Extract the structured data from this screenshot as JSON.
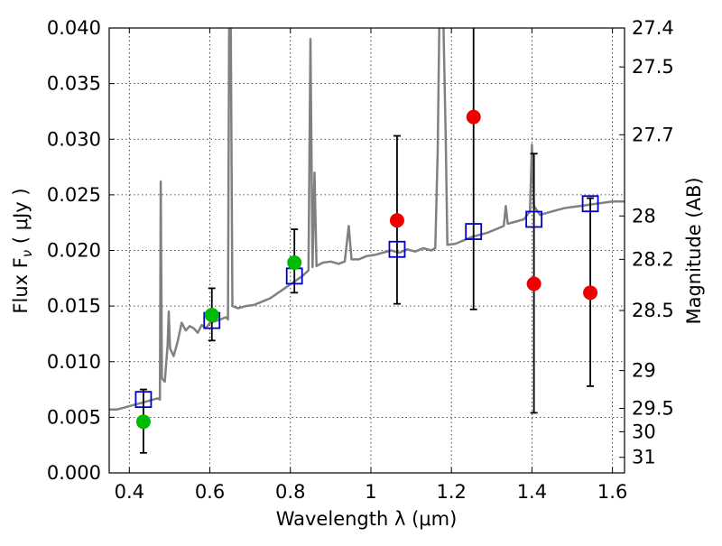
{
  "chart_data": {
    "type": "scatter",
    "xlabel": "Wavelength  λ (μm)",
    "ylabel": "Flux  F",
    "ylabel_sub": "ν",
    "ylabel_unit": "  ( μJy )",
    "y2label": "Magnitude (AB)",
    "xlim": [
      0.35,
      1.63
    ],
    "ylim": [
      0.0,
      0.04
    ],
    "grid": true,
    "x_ticks": [
      0.4,
      0.6,
      0.8,
      1.0,
      1.2,
      1.4,
      1.6
    ],
    "x_tick_labels": [
      "0.4",
      "0.6",
      "0.8",
      "1",
      "1.2",
      "1.4",
      "1.6"
    ],
    "y_ticks": [
      0.0,
      0.005,
      0.01,
      0.015,
      0.02,
      0.025,
      0.03,
      0.035,
      0.04
    ],
    "y_tick_labels": [
      "0.000",
      "0.005",
      "0.010",
      "0.015",
      "0.020",
      "0.025",
      "0.030",
      "0.035",
      "0.040"
    ],
    "y2_ticks": [
      {
        "label": "27.4",
        "flux": 0.04
      },
      {
        "label": "27.5",
        "flux": 0.0365
      },
      {
        "label": "27.7",
        "flux": 0.0304
      },
      {
        "label": "28",
        "flux": 0.0231
      },
      {
        "label": "28.2",
        "flux": 0.0192
      },
      {
        "label": "28.5",
        "flux": 0.0146
      },
      {
        "label": "29",
        "flux": 0.0092
      },
      {
        "label": "29.5",
        "flux": 0.0058
      },
      {
        "label": "30",
        "flux": 0.0037
      },
      {
        "label": "31",
        "flux": 0.0014
      }
    ],
    "series": [
      {
        "kind": "spectrum",
        "color": "#808080",
        "points": [
          [
            0.35,
            0.0057
          ],
          [
            0.37,
            0.0057
          ],
          [
            0.39,
            0.0059
          ],
          [
            0.41,
            0.0061
          ],
          [
            0.43,
            0.0063
          ],
          [
            0.45,
            0.0065
          ],
          [
            0.47,
            0.0067
          ],
          [
            0.476,
            0.0066
          ],
          [
            0.478,
            0.0262
          ],
          [
            0.481,
            0.0085
          ],
          [
            0.488,
            0.0082
          ],
          [
            0.495,
            0.0115
          ],
          [
            0.498,
            0.0145
          ],
          [
            0.501,
            0.0112
          ],
          [
            0.51,
            0.0105
          ],
          [
            0.52,
            0.0118
          ],
          [
            0.53,
            0.0135
          ],
          [
            0.54,
            0.0128
          ],
          [
            0.55,
            0.0132
          ],
          [
            0.56,
            0.013
          ],
          [
            0.57,
            0.0126
          ],
          [
            0.58,
            0.0133
          ],
          [
            0.59,
            0.013
          ],
          [
            0.6,
            0.0135
          ],
          [
            0.62,
            0.0137
          ],
          [
            0.64,
            0.014
          ],
          [
            0.645,
            0.0138
          ],
          [
            0.648,
            0.0405
          ],
          [
            0.652,
            0.0405
          ],
          [
            0.656,
            0.015
          ],
          [
            0.67,
            0.0148
          ],
          [
            0.69,
            0.015
          ],
          [
            0.71,
            0.0151
          ],
          [
            0.73,
            0.0154
          ],
          [
            0.75,
            0.0157
          ],
          [
            0.77,
            0.0162
          ],
          [
            0.79,
            0.0167
          ],
          [
            0.81,
            0.0172
          ],
          [
            0.83,
            0.0177
          ],
          [
            0.845,
            0.0182
          ],
          [
            0.85,
            0.039
          ],
          [
            0.855,
            0.0185
          ],
          [
            0.86,
            0.027
          ],
          [
            0.865,
            0.0186
          ],
          [
            0.88,
            0.0189
          ],
          [
            0.9,
            0.019
          ],
          [
            0.92,
            0.0188
          ],
          [
            0.935,
            0.019
          ],
          [
            0.945,
            0.0222
          ],
          [
            0.952,
            0.0192
          ],
          [
            0.97,
            0.0192
          ],
          [
            0.99,
            0.0195
          ],
          [
            1.01,
            0.0196
          ],
          [
            1.03,
            0.0198
          ],
          [
            1.05,
            0.02
          ],
          [
            1.07,
            0.0198
          ],
          [
            1.09,
            0.0201
          ],
          [
            1.11,
            0.0199
          ],
          [
            1.13,
            0.0202
          ],
          [
            1.15,
            0.02
          ],
          [
            1.16,
            0.0202
          ],
          [
            1.166,
            0.029
          ],
          [
            1.17,
            0.0405
          ],
          [
            1.18,
            0.0405
          ],
          [
            1.186,
            0.03
          ],
          [
            1.19,
            0.0205
          ],
          [
            1.21,
            0.0206
          ],
          [
            1.23,
            0.0209
          ],
          [
            1.25,
            0.0212
          ],
          [
            1.27,
            0.0214
          ],
          [
            1.29,
            0.0216
          ],
          [
            1.31,
            0.0219
          ],
          [
            1.33,
            0.0222
          ],
          [
            1.335,
            0.024
          ],
          [
            1.34,
            0.0224
          ],
          [
            1.36,
            0.0226
          ],
          [
            1.38,
            0.0228
          ],
          [
            1.395,
            0.0235
          ],
          [
            1.4,
            0.0295
          ],
          [
            1.405,
            0.024
          ],
          [
            1.42,
            0.0232
          ],
          [
            1.44,
            0.0234
          ],
          [
            1.46,
            0.0236
          ],
          [
            1.48,
            0.0238
          ],
          [
            1.5,
            0.0239
          ],
          [
            1.52,
            0.024
          ],
          [
            1.54,
            0.0241
          ],
          [
            1.56,
            0.0242
          ],
          [
            1.58,
            0.0243
          ],
          [
            1.6,
            0.0244
          ],
          [
            1.62,
            0.0244
          ],
          [
            1.63,
            0.0244
          ]
        ]
      },
      {
        "kind": "model_photometry",
        "marker": "open-square",
        "color": "#0000cc",
        "points": [
          [
            0.435,
            0.0066
          ],
          [
            0.605,
            0.0137
          ],
          [
            0.81,
            0.0177
          ],
          [
            1.065,
            0.0201
          ],
          [
            1.255,
            0.0217
          ],
          [
            1.405,
            0.0228
          ],
          [
            1.545,
            0.0242
          ]
        ]
      },
      {
        "kind": "green_points",
        "marker": "filled-circle",
        "color": "#00bb00",
        "points": [
          {
            "x": 0.435,
            "y": 0.0046,
            "lo": 0.0018,
            "hi": 0.0075
          },
          {
            "x": 0.605,
            "y": 0.0142,
            "lo": 0.0119,
            "hi": 0.0166
          },
          {
            "x": 0.81,
            "y": 0.0189,
            "lo": 0.0162,
            "hi": 0.0219
          }
        ]
      },
      {
        "kind": "red_points",
        "marker": "filled-circle",
        "color": "#ee0000",
        "points": [
          {
            "x": 1.065,
            "y": 0.0227,
            "lo": 0.0152,
            "hi": 0.0303
          },
          {
            "x": 1.255,
            "y": 0.032,
            "lo": 0.0147,
            "hi": 0.04
          },
          {
            "x": 1.405,
            "y": 0.017,
            "lo": 0.0054,
            "hi": 0.0287
          },
          {
            "x": 1.545,
            "y": 0.0162,
            "lo": 0.0078,
            "hi": 0.0247
          }
        ]
      }
    ]
  }
}
